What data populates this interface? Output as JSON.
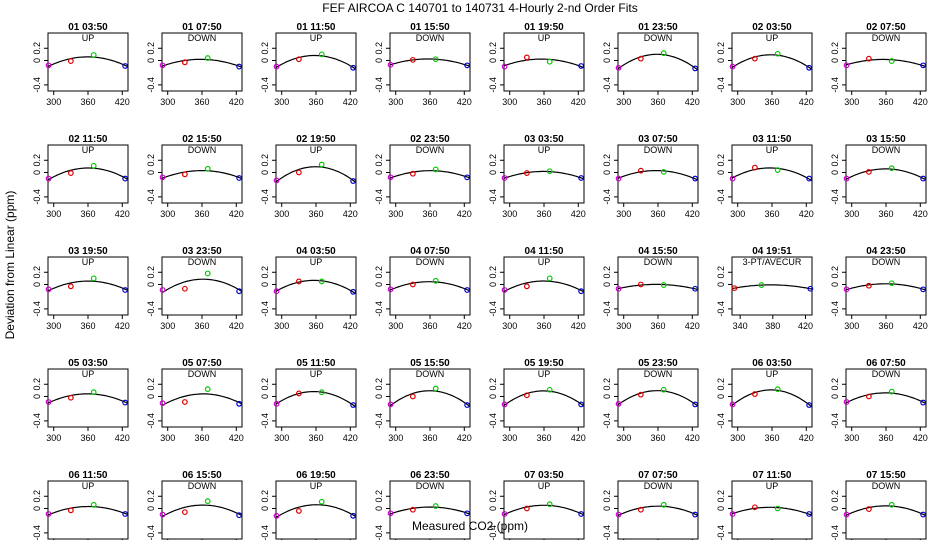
{
  "chart_data": {
    "type": "scatter",
    "title": "FEF   AIRCOA C   140701 to 140731   4-Hourly 2-nd Order Fits",
    "xlabel": "Measured CO2 (ppm)",
    "ylabel": "Deviation from Linear (ppm)",
    "layout": {
      "rows": 5,
      "cols": 8
    },
    "xlim": [
      290,
      430
    ],
    "ylim": [
      -0.5,
      0.45
    ],
    "xticks": [
      300,
      360,
      420
    ],
    "xticks_alt": [
      340,
      380,
      420
    ],
    "yticks": [
      -0.4,
      0,
      0.2
    ],
    "ytick_labels": [
      "-0.4",
      "0",
      "0.2"
    ],
    "point_colors": [
      "#cc00cc",
      "#dd0000",
      "#00cc00",
      "#0000cc"
    ],
    "curve_color": "#000000",
    "panels": [
      {
        "label": "01 03:50",
        "mode": "UP",
        "x": [
          291,
          330,
          370,
          425
        ],
        "y": [
          -0.08,
          -0.01,
          0.09,
          -0.09
        ],
        "peak": 0.1
      },
      {
        "label": "01 07:50",
        "mode": "DOWN",
        "x": [
          291,
          330,
          370,
          425
        ],
        "y": [
          -0.08,
          -0.03,
          0.04,
          -0.1
        ],
        "peak": 0.06
      },
      {
        "label": "01 11:50",
        "mode": "UP",
        "x": [
          291,
          330,
          370,
          425
        ],
        "y": [
          -0.1,
          0.02,
          0.1,
          -0.12
        ],
        "peak": 0.11
      },
      {
        "label": "01 15:50",
        "mode": "DOWN",
        "x": [
          291,
          330,
          370,
          425
        ],
        "y": [
          -0.07,
          0.01,
          0.02,
          -0.08
        ],
        "peak": 0.03
      },
      {
        "label": "01 19:50",
        "mode": "UP",
        "x": [
          291,
          330,
          370,
          425
        ],
        "y": [
          -0.1,
          0.05,
          -0.02,
          -0.09
        ],
        "peak": 0.03
      },
      {
        "label": "01 23:50",
        "mode": "DOWN",
        "x": [
          291,
          330,
          370,
          425
        ],
        "y": [
          -0.12,
          0.03,
          0.12,
          -0.13
        ],
        "peak": 0.12
      },
      {
        "label": "02 03:50",
        "mode": "UP",
        "x": [
          291,
          330,
          370,
          425
        ],
        "y": [
          -0.1,
          0.03,
          0.11,
          -0.12
        ],
        "peak": 0.11
      },
      {
        "label": "02 07:50",
        "mode": "DOWN",
        "x": [
          291,
          330,
          370,
          425
        ],
        "y": [
          -0.08,
          0.03,
          -0.01,
          -0.08
        ],
        "peak": 0.04
      },
      {
        "label": "02 11:50",
        "mode": "UP",
        "x": [
          291,
          330,
          370,
          425
        ],
        "y": [
          -0.1,
          -0.01,
          0.11,
          -0.1
        ],
        "peak": 0.1
      },
      {
        "label": "02 15:50",
        "mode": "DOWN",
        "x": [
          291,
          330,
          370,
          425
        ],
        "y": [
          -0.08,
          -0.03,
          0.06,
          -0.09
        ],
        "peak": 0.07
      },
      {
        "label": "02 19:50",
        "mode": "UP",
        "x": [
          291,
          330,
          370,
          425
        ],
        "y": [
          -0.13,
          0.0,
          0.13,
          -0.14
        ],
        "peak": 0.13
      },
      {
        "label": "02 23:50",
        "mode": "DOWN",
        "x": [
          291,
          330,
          370,
          425
        ],
        "y": [
          -0.08,
          -0.02,
          0.05,
          -0.08
        ],
        "peak": 0.06
      },
      {
        "label": "03 03:50",
        "mode": "UP",
        "x": [
          291,
          330,
          370,
          425
        ],
        "y": [
          -0.09,
          -0.01,
          0.02,
          -0.09
        ],
        "peak": 0.04
      },
      {
        "label": "03 07:50",
        "mode": "DOWN",
        "x": [
          291,
          330,
          370,
          425
        ],
        "y": [
          -0.1,
          0.03,
          0.01,
          -0.1
        ],
        "peak": 0.05
      },
      {
        "label": "03 11:50",
        "mode": "UP",
        "x": [
          291,
          330,
          370,
          425
        ],
        "y": [
          -0.1,
          0.08,
          0.04,
          -0.1
        ],
        "peak": 0.07
      },
      {
        "label": "03 15:50",
        "mode": "DOWN",
        "x": [
          291,
          330,
          370,
          425
        ],
        "y": [
          -0.1,
          0.01,
          0.07,
          -0.1
        ],
        "peak": 0.08
      },
      {
        "label": "03 19:50",
        "mode": "UP",
        "x": [
          291,
          330,
          370,
          425
        ],
        "y": [
          -0.08,
          -0.03,
          0.1,
          -0.09
        ],
        "peak": 0.08
      },
      {
        "label": "03 23:50",
        "mode": "DOWN",
        "x": [
          291,
          330,
          370,
          425
        ],
        "y": [
          -0.09,
          -0.07,
          0.18,
          -0.11
        ],
        "peak": 0.12
      },
      {
        "label": "04 03:50",
        "mode": "UP",
        "x": [
          291,
          330,
          370,
          425
        ],
        "y": [
          -0.11,
          0.05,
          0.05,
          -0.12
        ],
        "peak": 0.08
      },
      {
        "label": "04 07:50",
        "mode": "DOWN",
        "x": [
          291,
          330,
          370,
          425
        ],
        "y": [
          -0.08,
          0.0,
          0.06,
          -0.09
        ],
        "peak": 0.06
      },
      {
        "label": "04 11:50",
        "mode": "UP",
        "x": [
          291,
          330,
          370,
          425
        ],
        "y": [
          -0.09,
          -0.03,
          0.1,
          -0.11
        ],
        "peak": 0.08
      },
      {
        "label": "04 15:50",
        "mode": "DOWN",
        "x": [
          291,
          330,
          370,
          425
        ],
        "y": [
          -0.07,
          0.0,
          -0.01,
          -0.07
        ],
        "peak": 0.02
      },
      {
        "label": "04 19:51",
        "mode": "3-PT/AVECUR",
        "x": [
          333,
          366,
          426
        ],
        "y": [
          -0.06,
          -0.01,
          -0.07
        ],
        "peak": 0.01,
        "xrange": [
          330,
          428
        ],
        "xtick_set": "alt"
      },
      {
        "label": "04 23:50",
        "mode": "DOWN",
        "x": [
          291,
          330,
          370,
          425
        ],
        "y": [
          -0.08,
          -0.02,
          0.02,
          -0.08
        ],
        "peak": 0.03
      },
      {
        "label": "05 03:50",
        "mode": "UP",
        "x": [
          291,
          330,
          370,
          425
        ],
        "y": [
          -0.09,
          -0.02,
          0.07,
          -0.1
        ],
        "peak": 0.07
      },
      {
        "label": "05 07:50",
        "mode": "DOWN",
        "x": [
          291,
          330,
          370,
          425
        ],
        "y": [
          -0.11,
          -0.09,
          0.12,
          -0.12
        ],
        "peak": 0.08
      },
      {
        "label": "05 11:50",
        "mode": "UP",
        "x": [
          291,
          330,
          370,
          425
        ],
        "y": [
          -0.12,
          0.05,
          0.07,
          -0.14
        ],
        "peak": 0.1
      },
      {
        "label": "05 15:50",
        "mode": "DOWN",
        "x": [
          291,
          330,
          370,
          425
        ],
        "y": [
          -0.13,
          0.0,
          0.13,
          -0.14
        ],
        "peak": 0.13
      },
      {
        "label": "05 19:50",
        "mode": "UP",
        "x": [
          291,
          330,
          370,
          425
        ],
        "y": [
          -0.13,
          0.02,
          0.11,
          -0.13
        ],
        "peak": 0.12
      },
      {
        "label": "05 23:50",
        "mode": "DOWN",
        "x": [
          291,
          330,
          370,
          425
        ],
        "y": [
          -0.12,
          0.03,
          0.11,
          -0.13
        ],
        "peak": 0.12
      },
      {
        "label": "06 03:50",
        "mode": "UP",
        "x": [
          291,
          330,
          370,
          425
        ],
        "y": [
          -0.13,
          0.04,
          0.12,
          -0.14
        ],
        "peak": 0.13
      },
      {
        "label": "06 07:50",
        "mode": "DOWN",
        "x": [
          291,
          330,
          370,
          425
        ],
        "y": [
          -0.09,
          0.0,
          0.08,
          -0.1
        ],
        "peak": 0.08
      },
      {
        "label": "06 11:50",
        "mode": "UP",
        "x": [
          291,
          330,
          370,
          425
        ],
        "y": [
          -0.09,
          -0.03,
          0.06,
          -0.09
        ],
        "peak": 0.06
      },
      {
        "label": "06 15:50",
        "mode": "DOWN",
        "x": [
          291,
          330,
          370,
          425
        ],
        "y": [
          -0.1,
          -0.06,
          0.12,
          -0.11
        ],
        "peak": 0.09
      },
      {
        "label": "06 19:50",
        "mode": "UP",
        "x": [
          291,
          330,
          370,
          425
        ],
        "y": [
          -0.12,
          -0.04,
          0.11,
          -0.12
        ],
        "peak": 0.1
      },
      {
        "label": "06 23:50",
        "mode": "DOWN",
        "x": [
          291,
          330,
          370,
          425
        ],
        "y": [
          -0.08,
          -0.02,
          0.04,
          -0.08
        ],
        "peak": 0.05
      },
      {
        "label": "07 03:50",
        "mode": "UP",
        "x": [
          291,
          330,
          370,
          425
        ],
        "y": [
          -0.09,
          0.0,
          0.07,
          -0.09
        ],
        "peak": 0.07
      },
      {
        "label": "07 07:50",
        "mode": "DOWN",
        "x": [
          291,
          330,
          370,
          425
        ],
        "y": [
          -0.1,
          -0.02,
          0.06,
          -0.1
        ],
        "peak": 0.07
      },
      {
        "label": "07 11:50",
        "mode": "UP",
        "x": [
          291,
          330,
          370,
          425
        ],
        "y": [
          -0.09,
          0.02,
          0.0,
          -0.09
        ],
        "peak": 0.04
      },
      {
        "label": "07 15:50",
        "mode": "DOWN",
        "x": [
          291,
          330,
          370,
          425
        ],
        "y": [
          -0.1,
          -0.01,
          0.06,
          -0.1
        ],
        "peak": 0.07
      }
    ]
  }
}
